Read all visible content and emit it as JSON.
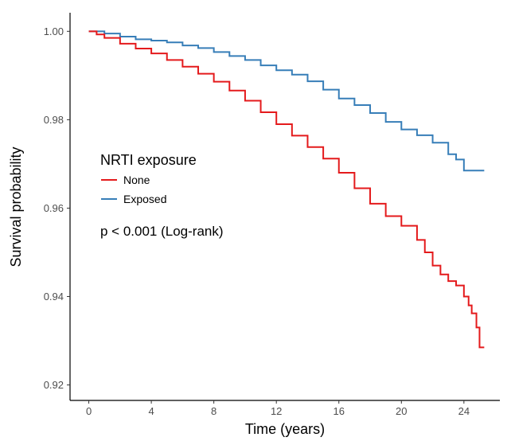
{
  "chart_data": {
    "type": "line",
    "step": true,
    "xlabel": "Time (years)",
    "ylabel": "Survival probability",
    "xlim": [
      -1.2,
      26.3
    ],
    "ylim": [
      0.9165,
      1.0042
    ],
    "x_ticks": [
      0,
      4,
      8,
      12,
      16,
      20,
      24
    ],
    "y_ticks": [
      0.92,
      0.94,
      0.96,
      0.98,
      1.0
    ],
    "y_tick_labels": [
      "0.92",
      "0.94",
      "0.96",
      "0.98",
      "1.00"
    ],
    "grid": false,
    "legend": {
      "title": "NRTI exposure",
      "placement": "left-middle"
    },
    "annotation": "p < 0.001 (Log-rank)",
    "series": [
      {
        "name": "None",
        "color": "#e41a1c",
        "points": [
          [
            0,
            1.0
          ],
          [
            0.5,
            0.9993
          ],
          [
            1,
            0.9985
          ],
          [
            2,
            0.9972
          ],
          [
            3,
            0.9961
          ],
          [
            4,
            0.995
          ],
          [
            5,
            0.9935
          ],
          [
            6,
            0.992
          ],
          [
            7,
            0.9904
          ],
          [
            8,
            0.9886
          ],
          [
            9,
            0.9866
          ],
          [
            10,
            0.9843
          ],
          [
            11,
            0.9817
          ],
          [
            12,
            0.979
          ],
          [
            13,
            0.9764
          ],
          [
            14,
            0.9738
          ],
          [
            15,
            0.9712
          ],
          [
            16,
            0.968
          ],
          [
            17,
            0.9645
          ],
          [
            18,
            0.961
          ],
          [
            19,
            0.9582
          ],
          [
            20,
            0.956
          ],
          [
            21,
            0.9528
          ],
          [
            21.5,
            0.95
          ],
          [
            22,
            0.947
          ],
          [
            22.5,
            0.945
          ],
          [
            23,
            0.9435
          ],
          [
            23.5,
            0.9425
          ],
          [
            24,
            0.94
          ],
          [
            24.3,
            0.938
          ],
          [
            24.5,
            0.9362
          ],
          [
            24.8,
            0.933
          ],
          [
            25,
            0.9285
          ],
          [
            25.3,
            0.9285
          ]
        ]
      },
      {
        "name": "Exposed",
        "color": "#377eb8",
        "points": [
          [
            0,
            1.0
          ],
          [
            1,
            0.9995
          ],
          [
            2,
            0.9988
          ],
          [
            3,
            0.9982
          ],
          [
            4,
            0.9979
          ],
          [
            5,
            0.9975
          ],
          [
            6,
            0.9968
          ],
          [
            7,
            0.9962
          ],
          [
            8,
            0.9953
          ],
          [
            9,
            0.9944
          ],
          [
            10,
            0.9935
          ],
          [
            11,
            0.9923
          ],
          [
            12,
            0.9912
          ],
          [
            13,
            0.9902
          ],
          [
            14,
            0.9887
          ],
          [
            15,
            0.9868
          ],
          [
            16,
            0.9848
          ],
          [
            17,
            0.9833
          ],
          [
            18,
            0.9815
          ],
          [
            19,
            0.9795
          ],
          [
            20,
            0.9778
          ],
          [
            21,
            0.9765
          ],
          [
            22,
            0.9748
          ],
          [
            23,
            0.9722
          ],
          [
            23.5,
            0.971
          ],
          [
            24,
            0.9685
          ],
          [
            25.3,
            0.9685
          ]
        ]
      }
    ]
  }
}
